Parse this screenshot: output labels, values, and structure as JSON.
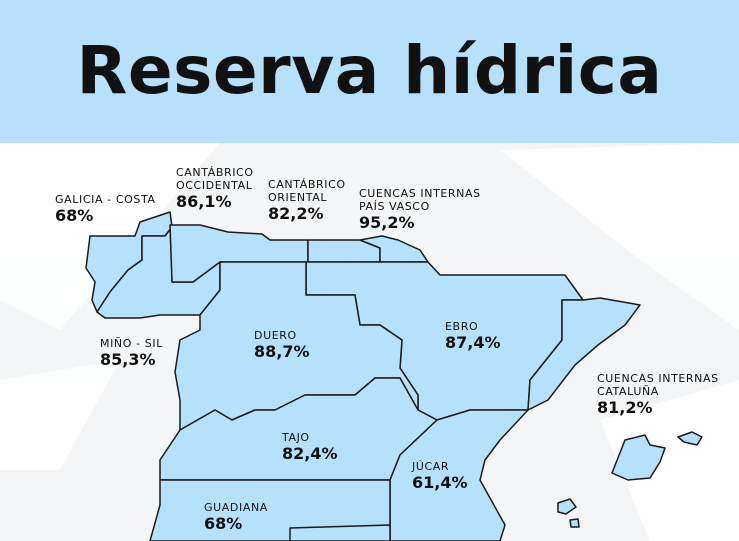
{
  "title": "Reserva hídrica",
  "colors": {
    "header_bg": "#b6e0fb",
    "region_fill": "#b5e1fc",
    "border": "#1a1a1a",
    "text": "#111111"
  },
  "regions": [
    {
      "id": "galicia-costa",
      "name": "GALICIA - COSTA",
      "value": "68%"
    },
    {
      "id": "cantabrico-occidental",
      "name": "CANTÁBRICO\nOCCIDENTAL",
      "value": "86,1%"
    },
    {
      "id": "cantabrico-oriental",
      "name": "CANTÁBRICO\nORIENTAL",
      "value": "82,2%"
    },
    {
      "id": "cuencas-pais-vasco",
      "name": "CUENCAS INTERNAS\nPAÍS VASCO",
      "value": "95,2%"
    },
    {
      "id": "mino-sil",
      "name": "MIÑO - SIL",
      "value": "85,3%"
    },
    {
      "id": "duero",
      "name": "DUERO",
      "value": "88,7%"
    },
    {
      "id": "ebro",
      "name": "EBRO",
      "value": "87,4%"
    },
    {
      "id": "cuencas-cataluna",
      "name": "CUENCAS INTERNAS\nCATALUÑA",
      "value": "81,2%"
    },
    {
      "id": "tajo",
      "name": "TAJO",
      "value": "82,4%"
    },
    {
      "id": "jucar",
      "name": "JÚCAR",
      "value": "61,4%"
    },
    {
      "id": "guadiana",
      "name": "GUADIANA",
      "value": "68%"
    }
  ]
}
